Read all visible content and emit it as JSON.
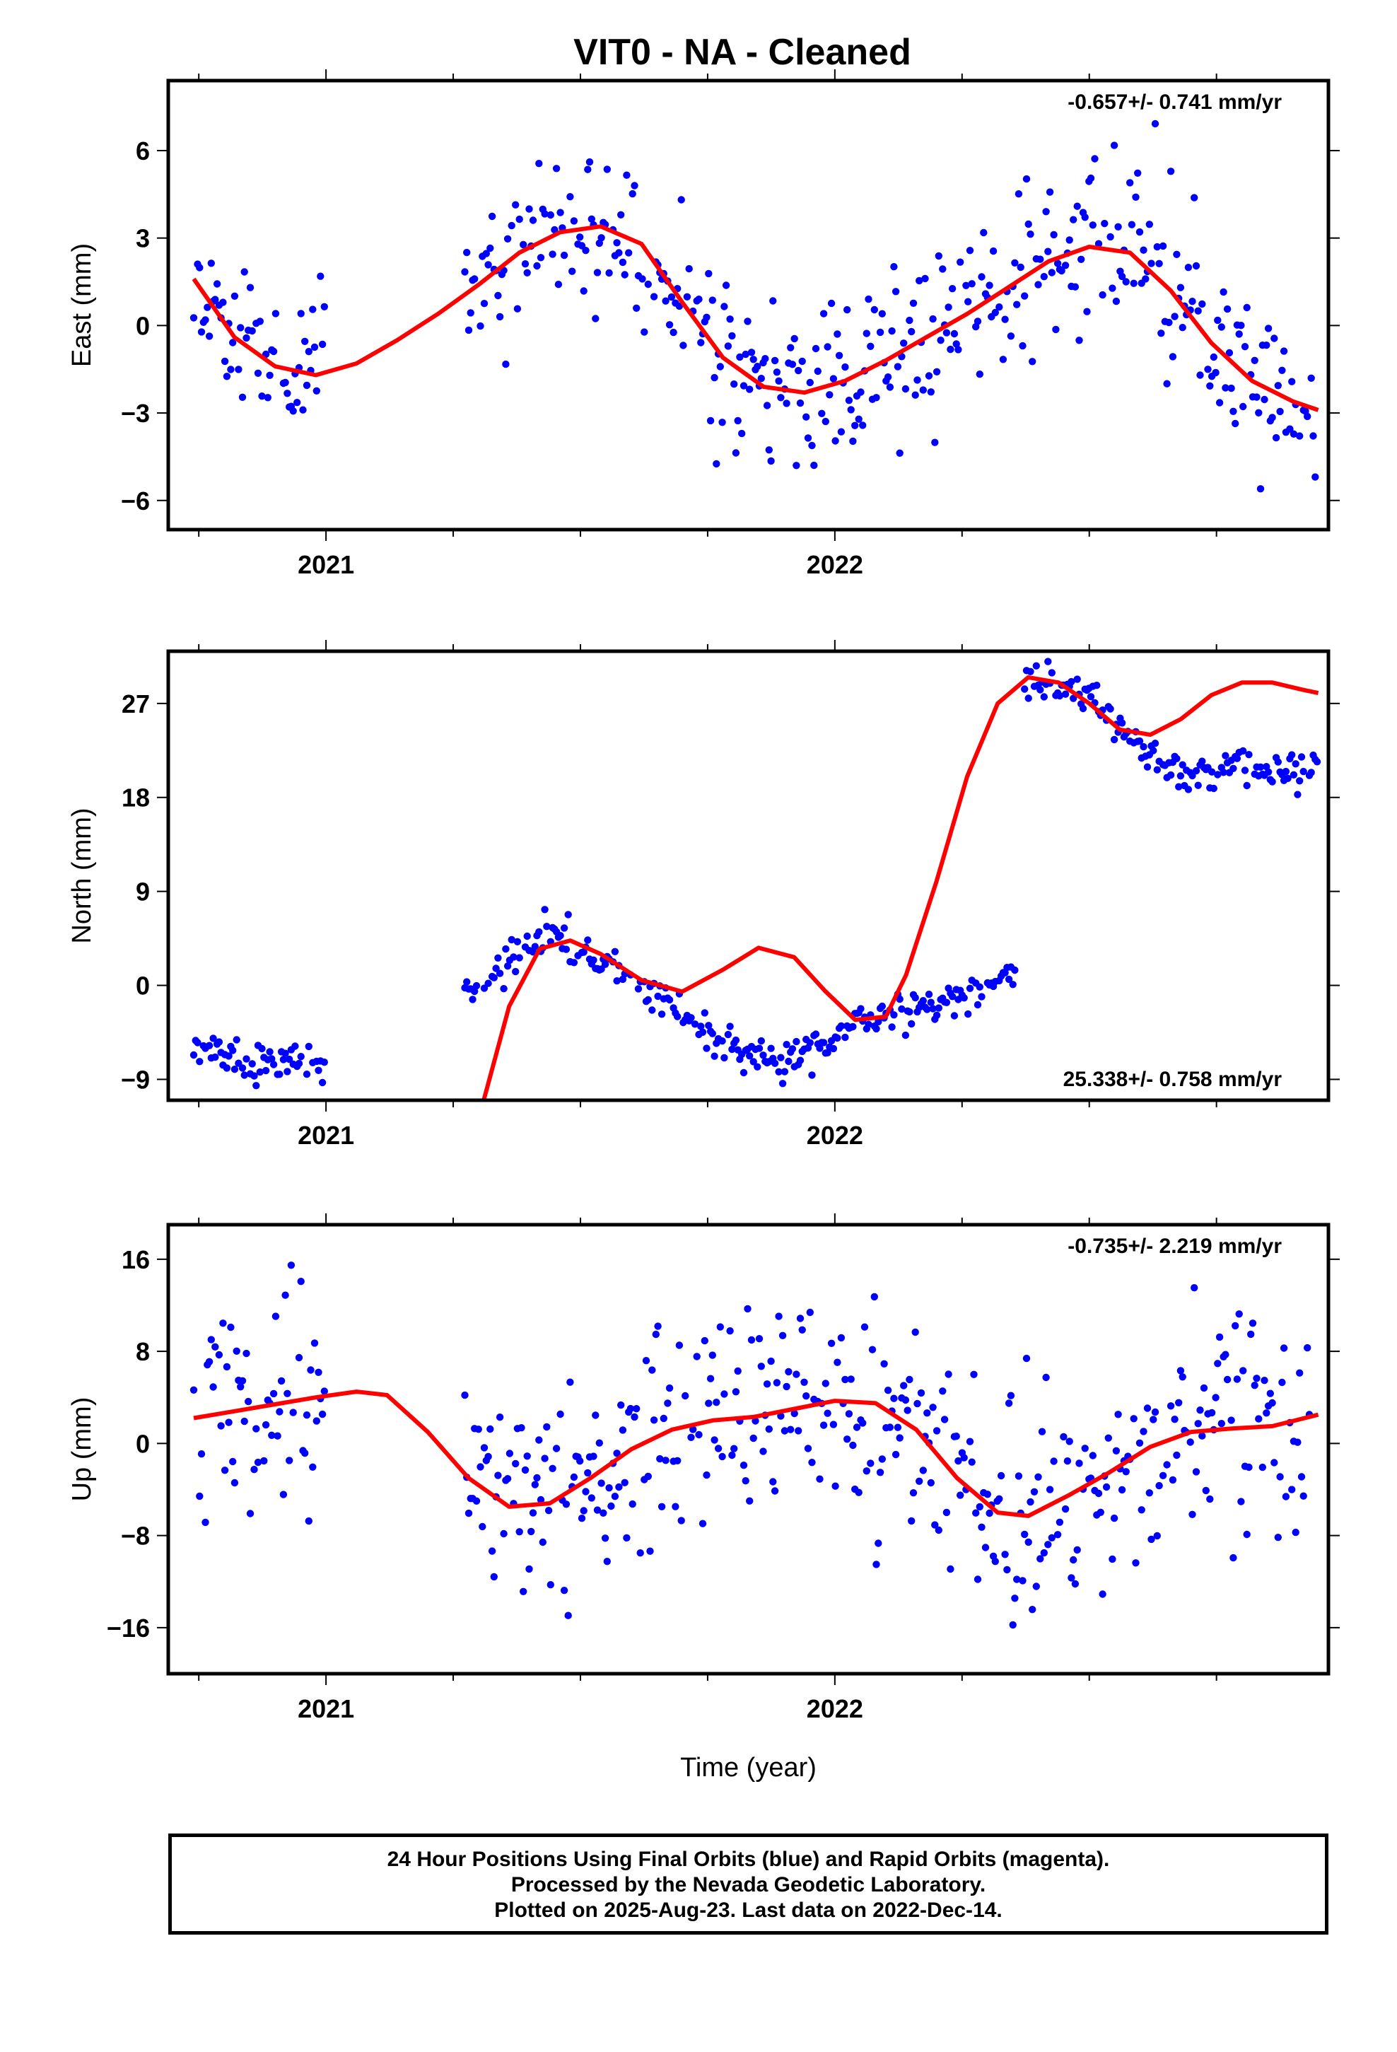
{
  "title": "VIT0  - NA - Cleaned",
  "footer": {
    "line1": "24 Hour Positions Using Final Orbits (blue) and Rapid Orbits (magenta).",
    "line2": "Processed by the Nevada Geodetic Laboratory.",
    "line3": "Plotted on 2025-Aug-23. Last data on 2022-Dec-14."
  },
  "colors": {
    "points": "#0000ff",
    "fit": "#ff0000",
    "frame": "#000000"
  },
  "chart_data": [
    {
      "type": "scatter",
      "ylabel": "East (mm)",
      "xlabel": "",
      "xlim": [
        2020.69,
        2022.97
      ],
      "ylim": [
        -7.0,
        8.4
      ],
      "yticks": [
        -6,
        -3,
        0,
        3,
        6
      ],
      "xticks_major": [
        2021,
        2022
      ],
      "rate_label": "-0.657+/- 0.741 mm/yr",
      "rate_position": "top-right",
      "fit": {
        "x": [
          2020.74,
          2020.82,
          2020.9,
          2020.98,
          2021.06,
          2021.14,
          2021.22,
          2021.3,
          2021.38,
          2021.46,
          2021.54,
          2021.62,
          2021.7,
          2021.78,
          2021.86,
          2021.94,
          2022.02,
          2022.1,
          2022.18,
          2022.26,
          2022.34,
          2022.42,
          2022.5,
          2022.58,
          2022.66,
          2022.74,
          2022.82,
          2022.9,
          2022.95
        ],
        "y": [
          1.6,
          -0.4,
          -1.4,
          -1.7,
          -1.3,
          -0.5,
          0.4,
          1.4,
          2.5,
          3.2,
          3.4,
          2.8,
          0.8,
          -1.1,
          -2.1,
          -2.3,
          -1.9,
          -1.2,
          -0.4,
          0.4,
          1.3,
          2.2,
          2.7,
          2.5,
          1.2,
          -0.6,
          -1.9,
          -2.6,
          -2.9
        ]
      },
      "gaps": [
        [
          2021.0,
          2021.27
        ]
      ],
      "model": [
        [
          2020.74,
          1.6
        ],
        [
          2020.82,
          -0.4
        ],
        [
          2020.9,
          -1.4
        ],
        [
          2020.98,
          -1.7
        ],
        [
          2021.06,
          -1.3
        ],
        [
          2021.14,
          -0.5
        ],
        [
          2021.22,
          0.4
        ],
        [
          2021.3,
          1.4
        ],
        [
          2021.38,
          2.5
        ],
        [
          2021.46,
          3.2
        ],
        [
          2021.54,
          3.4
        ],
        [
          2021.62,
          2.8
        ],
        [
          2021.7,
          0.8
        ],
        [
          2021.78,
          -1.1
        ],
        [
          2021.86,
          -2.1
        ],
        [
          2021.94,
          -2.3
        ],
        [
          2022.02,
          -1.9
        ],
        [
          2022.1,
          -1.2
        ],
        [
          2022.18,
          -0.4
        ],
        [
          2022.26,
          0.4
        ],
        [
          2022.34,
          1.3
        ],
        [
          2022.42,
          2.2
        ],
        [
          2022.5,
          2.7
        ],
        [
          2022.58,
          2.5
        ],
        [
          2022.66,
          1.2
        ],
        [
          2022.74,
          -0.6
        ],
        [
          2022.82,
          -1.9
        ],
        [
          2022.9,
          -2.6
        ],
        [
          2022.95,
          -2.9
        ]
      ],
      "noise": 1.4,
      "scale": 1.0,
      "seed": 11
    },
    {
      "type": "scatter",
      "ylabel": "North (mm)",
      "xlabel": "",
      "xlim": [
        2020.69,
        2022.97
      ],
      "ylim": [
        -11.0,
        32.0
      ],
      "yticks": [
        -9,
        0,
        9,
        18,
        27
      ],
      "xticks_major": [
        2021,
        2022
      ],
      "rate_label": "25.338+/- 0.758 mm/yr",
      "rate_position": "bottom-right",
      "fit": {
        "x": [
          2021.31,
          2021.36,
          2021.42,
          2021.48,
          2021.54,
          2021.62,
          2021.7,
          2021.78,
          2021.85,
          2021.92,
          2021.98,
          2022.04,
          2022.1,
          2022.14,
          2022.2,
          2022.26,
          2022.32,
          2022.38,
          2022.44,
          2022.5,
          2022.56,
          2022.62,
          2022.68,
          2022.74,
          2022.8,
          2022.86,
          2022.92,
          2022.95
        ],
        "y": [
          -11.0,
          -2.0,
          3.5,
          4.3,
          3.0,
          0.5,
          -0.6,
          1.5,
          3.6,
          2.7,
          -0.5,
          -3.3,
          -3.0,
          1.0,
          10.0,
          20.0,
          27.0,
          29.5,
          29.0,
          27.0,
          24.5,
          24.0,
          25.5,
          27.8,
          29.0,
          29.0,
          28.3,
          28.0
        ]
      },
      "gaps": [
        [
          2021.0,
          2021.27
        ],
        [
          2022.36,
          2022.37
        ]
      ],
      "model": [
        [
          2020.74,
          -5.5
        ],
        [
          2020.85,
          -8.0
        ],
        [
          2020.94,
          -7.0
        ],
        [
          2021.0,
          -7.5
        ],
        [
          2021.27,
          -0.5
        ],
        [
          2021.36,
          2.0
        ],
        [
          2021.43,
          5.0
        ],
        [
          2021.5,
          3.5
        ],
        [
          2021.58,
          1.0
        ],
        [
          2021.66,
          -1.0
        ],
        [
          2021.74,
          -4.5
        ],
        [
          2021.82,
          -6.5
        ],
        [
          2021.9,
          -7.0
        ],
        [
          2021.98,
          -5.5
        ],
        [
          2022.06,
          -3.5
        ],
        [
          2022.14,
          -2.5
        ],
        [
          2022.22,
          -1.5
        ],
        [
          2022.3,
          0.0
        ],
        [
          2022.36,
          1.5
        ],
        [
          2022.37,
          29.0
        ],
        [
          2022.44,
          29.0
        ],
        [
          2022.5,
          28.0
        ],
        [
          2022.56,
          25.0
        ],
        [
          2022.62,
          22.0
        ],
        [
          2022.7,
          19.5
        ],
        [
          2022.78,
          20.5
        ],
        [
          2022.86,
          20.5
        ],
        [
          2022.95,
          21.0
        ]
      ],
      "noise": 0.9,
      "scale": 1.0,
      "seed": 23
    },
    {
      "type": "scatter",
      "ylabel": "Up (mm)",
      "xlabel": "Time (year)",
      "xlim": [
        2020.69,
        2022.97
      ],
      "ylim": [
        -20.0,
        19.0
      ],
      "yticks": [
        -16,
        -8,
        0,
        8,
        16
      ],
      "xticks_major": [
        2021,
        2022
      ],
      "rate_label": "-0.735+/- 2.219 mm/yr",
      "rate_position": "top-right",
      "fit": {
        "x": [
          2020.74,
          2020.82,
          2020.9,
          2020.98,
          2021.06,
          2021.12,
          2021.2,
          2021.28,
          2021.36,
          2021.44,
          2021.52,
          2021.6,
          2021.68,
          2021.76,
          2021.84,
          2021.92,
          2022.0,
          2022.08,
          2022.16,
          2022.24,
          2022.32,
          2022.38,
          2022.46,
          2022.54,
          2022.62,
          2022.7,
          2022.78,
          2022.86,
          2022.95
        ],
        "y": [
          2.2,
          2.8,
          3.4,
          4.0,
          4.5,
          4.2,
          1.0,
          -3.0,
          -5.5,
          -5.2,
          -3.0,
          -0.5,
          1.2,
          2.0,
          2.3,
          3.0,
          3.7,
          3.5,
          1.2,
          -3.0,
          -6.0,
          -6.3,
          -4.5,
          -2.5,
          -0.3,
          1.0,
          1.3,
          1.5,
          2.5
        ]
      },
      "gaps": [
        [
          2021.0,
          2021.27
        ]
      ],
      "model": [
        [
          2020.74,
          2.2
        ],
        [
          2020.82,
          2.8
        ],
        [
          2020.9,
          3.4
        ],
        [
          2020.98,
          4.0
        ],
        [
          2021.28,
          -3.0
        ],
        [
          2021.36,
          -5.5
        ],
        [
          2021.44,
          -5.2
        ],
        [
          2021.52,
          -3.0
        ],
        [
          2021.6,
          -0.5
        ],
        [
          2021.68,
          1.2
        ],
        [
          2021.76,
          2.0
        ],
        [
          2021.84,
          2.3
        ],
        [
          2021.92,
          3.0
        ],
        [
          2022.0,
          3.7
        ],
        [
          2022.08,
          3.5
        ],
        [
          2022.16,
          1.2
        ],
        [
          2022.24,
          -3.0
        ],
        [
          2022.32,
          -6.0
        ],
        [
          2022.38,
          -6.3
        ],
        [
          2022.46,
          -4.5
        ],
        [
          2022.54,
          -2.5
        ],
        [
          2022.62,
          -0.3
        ],
        [
          2022.7,
          1.0
        ],
        [
          2022.78,
          1.3
        ],
        [
          2022.86,
          1.5
        ],
        [
          2022.95,
          2.5
        ]
      ],
      "noise": 4.5,
      "scale": 1.0,
      "seed": 37
    }
  ]
}
